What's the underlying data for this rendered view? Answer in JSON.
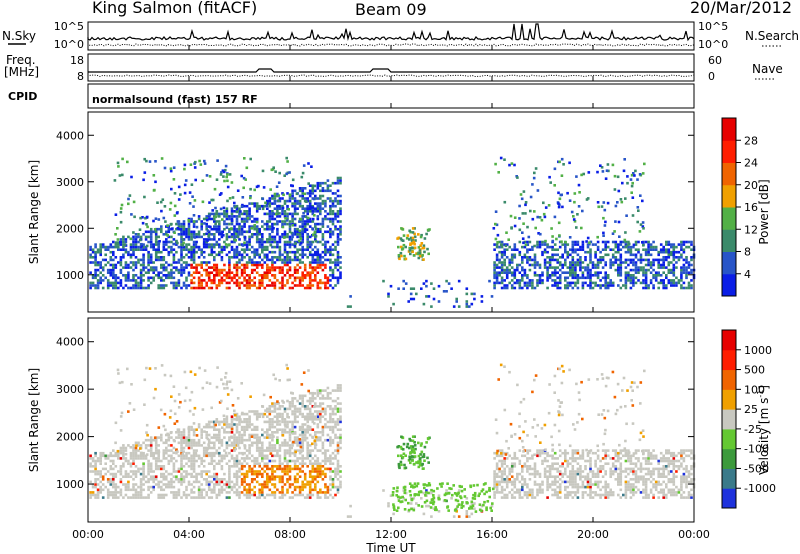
{
  "header": {
    "station": "King Salmon (fitACF)",
    "beam": "Beam 09",
    "date": "20/Mar/2012"
  },
  "noise_panel": {
    "left_label": "N.Sky",
    "left_ticks": [
      "10^5",
      "10^0"
    ],
    "right_ticks": [
      "10^5",
      "10^0"
    ],
    "right_label": "N.Search"
  },
  "freq_panel": {
    "left_label_line1": "Freq.",
    "left_label_line2": "[MHz]",
    "left_ticks": [
      "18",
      "8"
    ],
    "right_ticks": [
      "60",
      "0"
    ],
    "right_label": "Nave"
  },
  "cpid": {
    "label": "CPID",
    "program": "normalsound (fast) 157 RF"
  },
  "colors": {
    "frame": "#000000",
    "background": "#ffffff",
    "ground_scatter": "#c8c8c0"
  },
  "chart_data": [
    {
      "type": "heatmap",
      "name": "power-panel",
      "ylabel": "Slant Range [km]",
      "ylim": [
        200,
        4500
      ],
      "y_ticks": [
        "1000",
        "2000",
        "3000",
        "4000"
      ],
      "y_tick_values": [
        1000,
        2000,
        3000,
        4000
      ],
      "colorbar": {
        "label": "Power [dB]",
        "range": [
          0,
          32
        ],
        "tick_labels": [
          "4",
          "8",
          "12",
          "16",
          "20",
          "24",
          "28"
        ],
        "colors": [
          "#0a1ee6",
          "#2855c8",
          "#3a8a6a",
          "#52b046",
          "#f0a000",
          "#f06400",
          "#ff1e00",
          "#e60000"
        ]
      }
    },
    {
      "type": "heatmap",
      "name": "velocity-panel",
      "ylabel": "Slant Range [km]",
      "ylim": [
        200,
        4500
      ],
      "y_ticks": [
        "1000",
        "2000",
        "3000",
        "4000"
      ],
      "y_tick_values": [
        1000,
        2000,
        3000,
        4000
      ],
      "colorbar": {
        "label": "Velocity [m s",
        "label_sup": "-1",
        "label_end": "]",
        "tick_labels": [
          "1000",
          "500",
          "100",
          "25",
          "-25",
          "-100",
          "-500",
          "-1000"
        ],
        "colors": [
          "#1e32dc",
          "#3a7a8a",
          "#3c9a3c",
          "#64c832",
          "#c8c8c0",
          "#f0a000",
          "#f06400",
          "#ff1e00",
          "#e60000"
        ]
      }
    }
  ],
  "time_axis": {
    "label": "Time UT",
    "tick_labels": [
      "00:00",
      "04:00",
      "08:00",
      "12:00",
      "16:00",
      "20:00",
      "00:00"
    ],
    "range_hours": [
      0,
      24
    ]
  }
}
